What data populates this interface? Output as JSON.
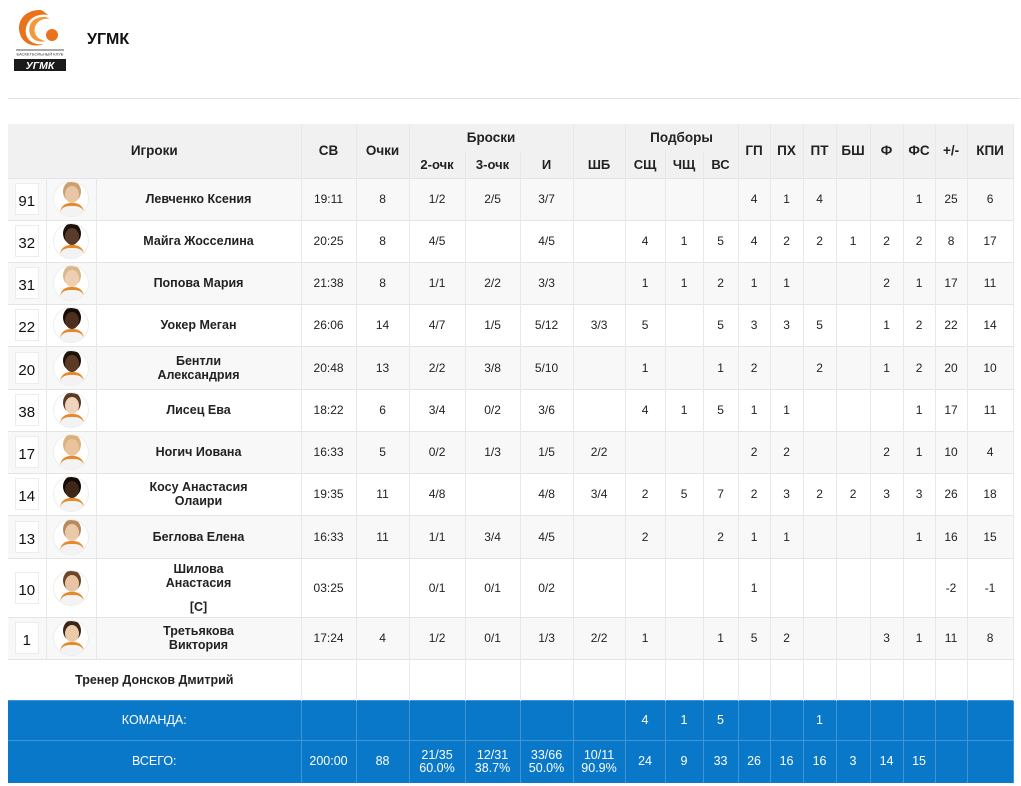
{
  "team": {
    "name": "УГМК",
    "logo_text": "УГМК",
    "logo_small_text": "БАСКЕТБОЛЬНЫЙ КЛУБ"
  },
  "columns": {
    "players": "Игроки",
    "sv": "СВ",
    "points": "Очки",
    "shots_group": "Броски",
    "two": "2-очк",
    "three": "3-очк",
    "i": "И",
    "sb": "ШБ",
    "reb_group": "Подборы",
    "oreb": "СЩ",
    "dreb": "ЧЩ",
    "treb": "ВС",
    "gp": "ГП",
    "px": "ПХ",
    "pt": "ПТ",
    "bsh": "БШ",
    "f": "Ф",
    "fs": "ФС",
    "pm": "+/-",
    "kpi": "КПИ"
  },
  "players": [
    {
      "num": "91",
      "name": "Левченко Ксения",
      "cap": "",
      "sv": "19:11",
      "pts": "8",
      "two": "1/2",
      "three": "2/5",
      "i": "3/7",
      "sb": "",
      "oreb": "",
      "dreb": "",
      "treb": "",
      "gp": "4",
      "px": "1",
      "pt": "4",
      "bsh": "",
      "f": "",
      "fs": "1",
      "pm": "25",
      "kpi": "6"
    },
    {
      "num": "32",
      "name": "Майга Жосселина",
      "cap": "",
      "sv": "20:25",
      "pts": "8",
      "two": "4/5",
      "three": "",
      "i": "4/5",
      "sb": "",
      "oreb": "4",
      "dreb": "1",
      "treb": "5",
      "gp": "4",
      "px": "2",
      "pt": "2",
      "bsh": "1",
      "f": "2",
      "fs": "2",
      "pm": "8",
      "kpi": "17"
    },
    {
      "num": "31",
      "name": "Попова Мария",
      "cap": "",
      "sv": "21:38",
      "pts": "8",
      "two": "1/1",
      "three": "2/2",
      "i": "3/3",
      "sb": "",
      "oreb": "1",
      "dreb": "1",
      "treb": "2",
      "gp": "1",
      "px": "1",
      "pt": "",
      "bsh": "",
      "f": "2",
      "fs": "1",
      "pm": "17",
      "kpi": "11"
    },
    {
      "num": "22",
      "name": "Уокер Меган",
      "cap": "",
      "sv": "26:06",
      "pts": "14",
      "two": "4/7",
      "three": "1/5",
      "i": "5/12",
      "sb": "3/3",
      "oreb": "5",
      "dreb": "",
      "treb": "5",
      "gp": "3",
      "px": "3",
      "pt": "5",
      "bsh": "",
      "f": "1",
      "fs": "2",
      "pm": "22",
      "kpi": "14"
    },
    {
      "num": "20",
      "name": "Бентли Александрия",
      "cap": "",
      "sv": "20:48",
      "pts": "13",
      "two": "2/2",
      "three": "3/8",
      "i": "5/10",
      "sb": "",
      "oreb": "1",
      "dreb": "",
      "treb": "1",
      "gp": "2",
      "px": "",
      "pt": "2",
      "bsh": "",
      "f": "1",
      "fs": "2",
      "pm": "20",
      "kpi": "10"
    },
    {
      "num": "38",
      "name": "Лисец Ева",
      "cap": "",
      "sv": "18:22",
      "pts": "6",
      "two": "3/4",
      "three": "0/2",
      "i": "3/6",
      "sb": "",
      "oreb": "4",
      "dreb": "1",
      "treb": "5",
      "gp": "1",
      "px": "1",
      "pt": "",
      "bsh": "",
      "f": "",
      "fs": "1",
      "pm": "17",
      "kpi": "11"
    },
    {
      "num": "17",
      "name": "Ногич Иована",
      "cap": "",
      "sv": "16:33",
      "pts": "5",
      "two": "0/2",
      "three": "1/3",
      "i": "1/5",
      "sb": "2/2",
      "oreb": "",
      "dreb": "",
      "treb": "",
      "gp": "2",
      "px": "2",
      "pt": "",
      "bsh": "",
      "f": "2",
      "fs": "1",
      "pm": "10",
      "kpi": "4"
    },
    {
      "num": "14",
      "name": "Косу Анастасия Олаири",
      "cap": "",
      "sv": "19:35",
      "pts": "11",
      "two": "4/8",
      "three": "",
      "i": "4/8",
      "sb": "3/4",
      "oreb": "2",
      "dreb": "5",
      "treb": "7",
      "gp": "2",
      "px": "3",
      "pt": "2",
      "bsh": "2",
      "f": "3",
      "fs": "3",
      "pm": "26",
      "kpi": "18"
    },
    {
      "num": "13",
      "name": "Беглова Елена",
      "cap": "",
      "sv": "16:33",
      "pts": "11",
      "two": "1/1",
      "three": "3/4",
      "i": "4/5",
      "sb": "",
      "oreb": "2",
      "dreb": "",
      "treb": "2",
      "gp": "1",
      "px": "1",
      "pt": "",
      "bsh": "",
      "f": "",
      "fs": "1",
      "pm": "16",
      "kpi": "15"
    },
    {
      "num": "10",
      "name": "Шилова Анастасия",
      "cap": "[C]",
      "sv": "03:25",
      "pts": "",
      "two": "0/1",
      "three": "0/1",
      "i": "0/2",
      "sb": "",
      "oreb": "",
      "dreb": "",
      "treb": "",
      "gp": "1",
      "px": "",
      "pt": "",
      "bsh": "",
      "f": "",
      "fs": "",
      "pm": "-2",
      "kpi": "-1"
    },
    {
      "num": "1",
      "name": "Третьякова Виктория",
      "cap": "",
      "sv": "17:24",
      "pts": "4",
      "two": "1/2",
      "three": "0/1",
      "i": "1/3",
      "sb": "2/2",
      "oreb": "1",
      "dreb": "",
      "treb": "1",
      "gp": "5",
      "px": "2",
      "pt": "",
      "bsh": "",
      "f": "3",
      "fs": "1",
      "pm": "11",
      "kpi": "8"
    }
  ],
  "coach": "Тренер Донсков Дмитрий",
  "team_row": {
    "label": "КОМАНДА:",
    "oreb": "4",
    "dreb": "1",
    "treb": "5",
    "pt": "1"
  },
  "total_row": {
    "label": "ВСЕГО:",
    "sv": "200:00",
    "pts": "88",
    "two": "21/35",
    "two_pct": "60.0%",
    "three": "12/31",
    "three_pct": "38.7%",
    "i": "33/66",
    "i_pct": "50.0%",
    "sb": "10/11",
    "sb_pct": "90.9%",
    "oreb": "24",
    "dreb": "9",
    "treb": "33",
    "gp": "26",
    "px": "16",
    "pt": "16",
    "bsh": "3",
    "f": "14",
    "fs": "15"
  },
  "colors": {
    "accent": "#0a78c8",
    "logo_orange": "#e8731c",
    "logo_dark": "#1a1a1a"
  }
}
